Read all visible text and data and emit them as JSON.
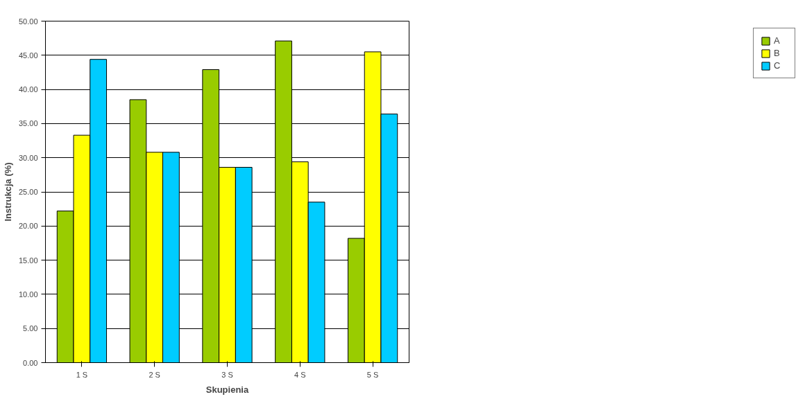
{
  "chart_data": {
    "type": "bar",
    "xlabel": "Skupienia",
    "ylabel": "Instrukcja (%)",
    "categories": [
      "1 S",
      "2 S",
      "3 S",
      "4 S",
      "5 S"
    ],
    "series": [
      {
        "name": "A",
        "color": "#99cc00",
        "values": [
          22.2,
          38.5,
          42.9,
          47.1,
          18.2
        ]
      },
      {
        "name": "B",
        "color": "#ffff00",
        "values": [
          33.3,
          30.8,
          28.6,
          29.4,
          45.5
        ]
      },
      {
        "name": "C",
        "color": "#00ccff",
        "values": [
          44.4,
          30.8,
          28.6,
          23.5,
          36.4
        ]
      }
    ],
    "ylim": [
      0,
      50
    ],
    "yticks": [
      {
        "value": 0,
        "label": "0.00"
      },
      {
        "value": 5,
        "label": "5.00"
      },
      {
        "value": 10,
        "label": "10.00"
      },
      {
        "value": 15,
        "label": "15.00"
      },
      {
        "value": 20,
        "label": "20.00"
      },
      {
        "value": 25,
        "label": "25.00"
      },
      {
        "value": 30,
        "label": "30.00"
      },
      {
        "value": 35,
        "label": "35.00"
      },
      {
        "value": 40,
        "label": "40.00"
      },
      {
        "value": 45,
        "label": "45.00"
      },
      {
        "value": 50,
        "label": "50.00"
      }
    ],
    "grid": "y",
    "legend": "right"
  }
}
